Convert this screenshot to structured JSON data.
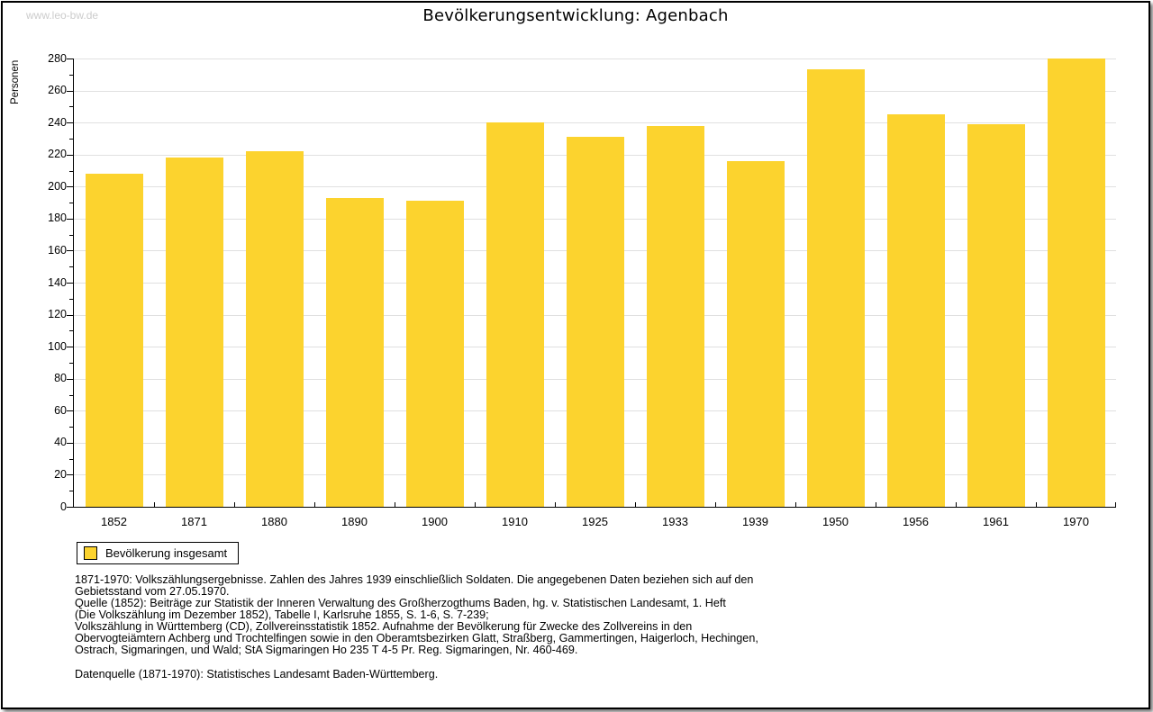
{
  "watermark": "www.leo-bw.de",
  "header": {
    "title": "Bevölkerungsentwicklung: Agenbach"
  },
  "chart_data": {
    "type": "bar",
    "title": "Bevölkerungsentwicklung: Agenbach",
    "categories": [
      "1852",
      "1871",
      "1880",
      "1890",
      "1900",
      "1910",
      "1925",
      "1933",
      "1939",
      "1950",
      "1956",
      "1961",
      "1970"
    ],
    "values": [
      208,
      218,
      222,
      193,
      191,
      240,
      231,
      238,
      216,
      273,
      245,
      239,
      280
    ],
    "series_name": "Bevölkerung insgesamt",
    "xlabel": "",
    "ylabel": "Personen",
    "ylim": [
      0,
      280
    ],
    "ytick_step": 20,
    "minor_tick_step": 10,
    "grid": true,
    "bar_color": "#fcd32e",
    "gridline_color": "#e0e0e0",
    "legend_position": "bottom-left"
  },
  "legend": {
    "label": "Bevölkerung insgesamt",
    "swatch_color": "#fcd32e"
  },
  "footnotes": [
    "1871-1970: Volkszählungsergebnisse. Zahlen des Jahres 1939 einschließlich Soldaten. Die angegebenen Daten beziehen sich auf den",
    "Gebietsstand vom 27.05.1970.",
    "Quelle (1852): Beiträge zur Statistik der Inneren Verwaltung des Großherzogthums Baden, hg. v. Statistischen Landesamt, 1. Heft",
    "(Die Volkszählung im Dezember 1852), Tabelle I, Karlsruhe 1855, S. 1-6, S. 7-239;",
    "Volkszählung in Württemberg (CD), Zollvereinsstatistik 1852. Aufnahme der Bevölkerung für Zwecke des Zollvereins in den",
    "Obervogteiämtern Achberg und Trochtelfingen sowie in den Oberamtsbezirken Glatt, Straßberg, Gammertingen, Haigerloch, Hechingen,",
    "Ostrach, Sigmaringen, und Wald; StA Sigmaringen Ho 235 T 4-5 Pr. Reg. Sigmaringen, Nr. 460-469."
  ],
  "datasource": "Datenquelle (1871-1970): Statistisches Landesamt Baden-Württemberg."
}
